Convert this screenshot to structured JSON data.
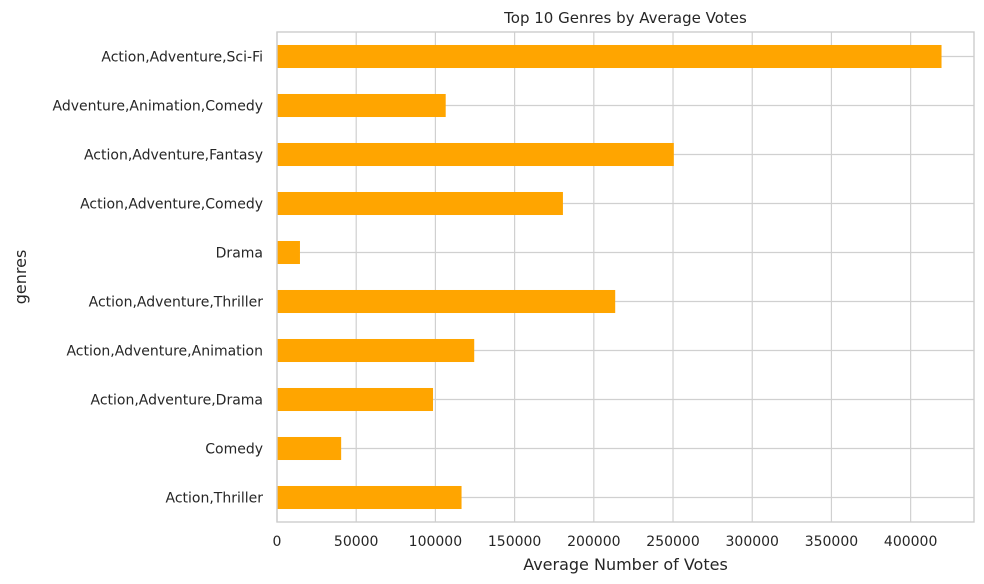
{
  "chart_data": {
    "type": "bar",
    "orientation": "horizontal",
    "title": "Top 10 Genres by Average Votes",
    "xlabel": "Average Number of Votes",
    "ylabel": "genres",
    "categories": [
      "Action,Adventure,Sci-Fi",
      "Adventure,Animation,Comedy",
      "Action,Adventure,Fantasy",
      "Action,Adventure,Comedy",
      "Drama",
      "Action,Adventure,Thriller",
      "Action,Adventure,Animation",
      "Action,Adventure,Drama",
      "Comedy",
      "Action,Thriller"
    ],
    "values": [
      419500,
      106500,
      250500,
      180500,
      14500,
      213500,
      124500,
      98500,
      40500,
      116500
    ],
    "xticks": [
      0,
      50000,
      100000,
      150000,
      200000,
      250000,
      300000,
      350000,
      400000
    ],
    "xlim": [
      0,
      440000
    ],
    "grid": true,
    "bar_color": "#ffa500"
  }
}
